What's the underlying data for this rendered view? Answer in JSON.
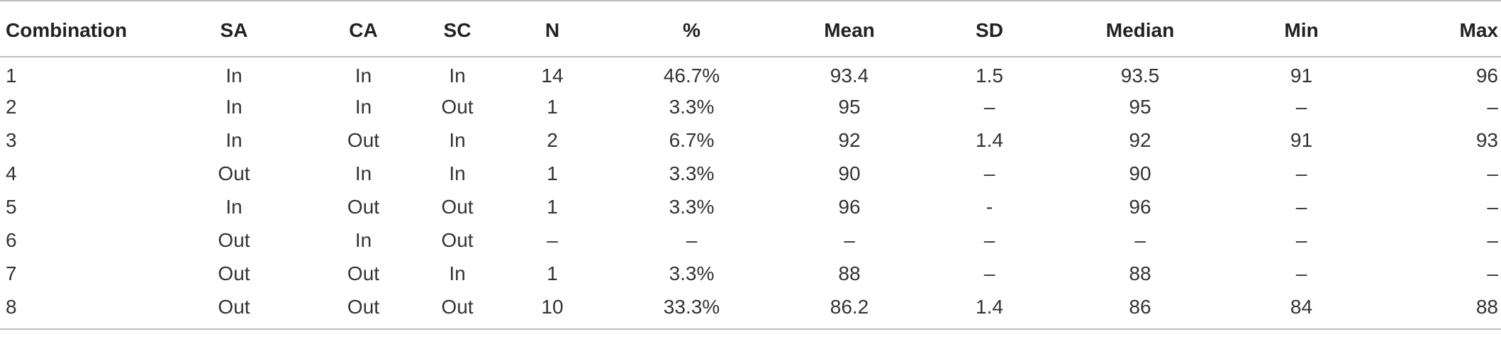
{
  "table": {
    "headers": [
      "Combination",
      "SA",
      "CA",
      "SC",
      "N",
      "%",
      "Mean",
      "SD",
      "Median",
      "Min",
      "Max"
    ],
    "rows": [
      [
        "1",
        "In",
        "In",
        "In",
        "14",
        "46.7%",
        "93.4",
        "1.5",
        "93.5",
        "91",
        "96"
      ],
      [
        "2",
        "In",
        "In",
        "Out",
        "1",
        "3.3%",
        "95",
        "–",
        "95",
        "–",
        "–"
      ],
      [
        "3",
        "In",
        "Out",
        "In",
        "2",
        "6.7%",
        "92",
        "1.4",
        "92",
        "91",
        "93"
      ],
      [
        "4",
        "Out",
        "In",
        "In",
        "1",
        "3.3%",
        "90",
        "–",
        "90",
        "–",
        "–"
      ],
      [
        "5",
        "In",
        "Out",
        "Out",
        "1",
        "3.3%",
        "96",
        "-",
        "96",
        "–",
        "–"
      ],
      [
        "6",
        "Out",
        "In",
        "Out",
        "–",
        "–",
        "–",
        "–",
        "–",
        "–",
        "–"
      ],
      [
        "7",
        "Out",
        "Out",
        "In",
        "1",
        "3.3%",
        "88",
        "–",
        "88",
        "–",
        "–"
      ],
      [
        "8",
        "Out",
        "Out",
        "Out",
        "10",
        "33.3%",
        "86.2",
        "1.4",
        "86",
        "84",
        "88"
      ]
    ]
  }
}
